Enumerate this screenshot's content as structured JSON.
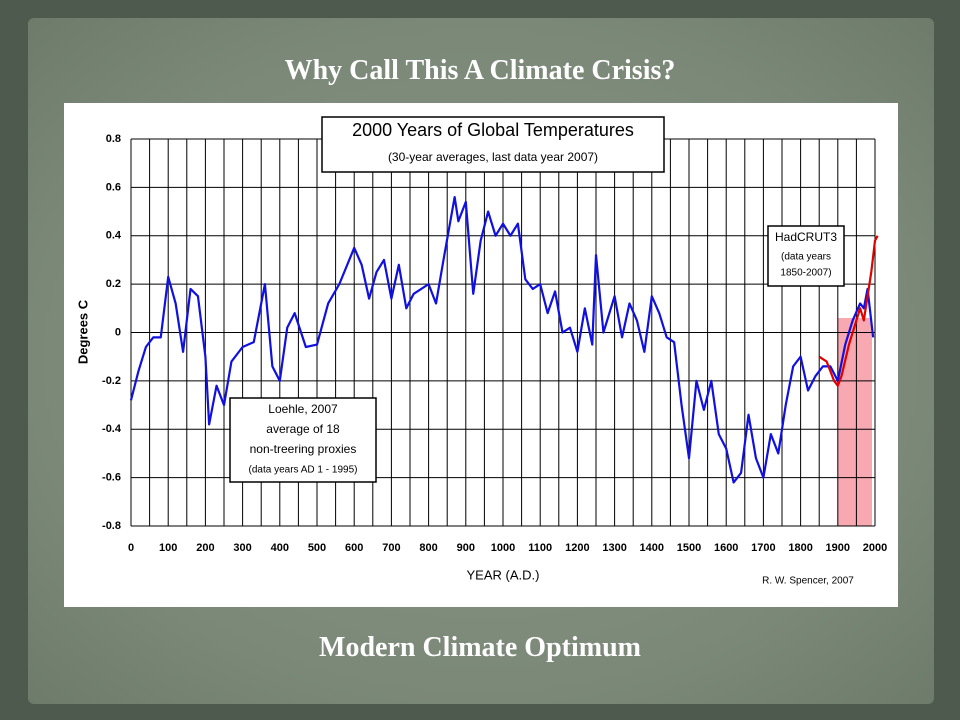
{
  "slide_title": "Why Call This A Climate Crisis?",
  "slide_footer": "Modern Climate Optimum",
  "chart_data": {
    "type": "line",
    "title": "2000 Years of Global Temperatures",
    "subtitle": "(30-year averages, last data year 2007)",
    "xlabel": "YEAR (A.D.)",
    "ylabel": "Degrees C",
    "credit": "R. W. Spencer, 2007",
    "annotations": {
      "loehle": [
        "average of 18",
        "non-treering proxies",
        "(data years AD 1 - 1995)"
      ],
      "hadcrut": [
        "(data years",
        "1850-2007)"
      ]
    },
    "xlim": [
      0,
      2000
    ],
    "ylim": [
      -0.8,
      0.8
    ],
    "xticks": [
      0,
      100,
      200,
      300,
      400,
      500,
      600,
      700,
      800,
      900,
      1000,
      1100,
      1200,
      1300,
      1400,
      1500,
      1600,
      1700,
      1800,
      1900,
      2000
    ],
    "x_minor_ticks": [
      50,
      150,
      250,
      350,
      450,
      550,
      650,
      750,
      850,
      950,
      1050,
      1150,
      1250,
      1350,
      1450,
      1550,
      1650,
      1750,
      1850,
      1950
    ],
    "yticks": [
      0.8,
      0.6,
      0.4,
      0.2,
      0,
      -0.2,
      -0.4,
      -0.6,
      -0.8
    ],
    "grid": true,
    "series": [
      {
        "name": "Loehle, 2007",
        "color": "#1010e0",
        "x": [
          0,
          20,
          40,
          60,
          80,
          100,
          120,
          140,
          160,
          180,
          200,
          210,
          230,
          250,
          270,
          300,
          330,
          360,
          380,
          400,
          420,
          440,
          470,
          500,
          530,
          560,
          600,
          620,
          640,
          660,
          680,
          700,
          720,
          740,
          760,
          800,
          820,
          840,
          870,
          880,
          900,
          920,
          940,
          960,
          980,
          1000,
          1020,
          1040,
          1060,
          1080,
          1100,
          1120,
          1140,
          1160,
          1180,
          1200,
          1220,
          1240,
          1250,
          1270,
          1300,
          1320,
          1340,
          1360,
          1380,
          1400,
          1420,
          1440,
          1460,
          1480,
          1500,
          1520,
          1540,
          1560,
          1580,
          1600,
          1620,
          1640,
          1660,
          1680,
          1700,
          1720,
          1740,
          1760,
          1780,
          1800,
          1820,
          1840,
          1860,
          1880,
          1900,
          1920,
          1940,
          1960,
          1970,
          1980,
          1995
        ],
        "values": [
          -0.28,
          -0.16,
          -0.06,
          -0.02,
          -0.02,
          0.23,
          0.12,
          -0.08,
          0.18,
          0.15,
          -0.1,
          -0.38,
          -0.22,
          -0.3,
          -0.12,
          -0.06,
          -0.04,
          0.2,
          -0.14,
          -0.2,
          0.02,
          0.08,
          -0.06,
          -0.05,
          0.12,
          0.2,
          0.35,
          0.28,
          0.14,
          0.25,
          0.3,
          0.14,
          0.28,
          0.1,
          0.16,
          0.2,
          0.12,
          0.3,
          0.56,
          0.46,
          0.54,
          0.16,
          0.38,
          0.5,
          0.4,
          0.45,
          0.4,
          0.45,
          0.22,
          0.18,
          0.2,
          0.08,
          0.17,
          0.0,
          0.02,
          -0.08,
          0.1,
          -0.05,
          0.32,
          0.0,
          0.15,
          -0.02,
          0.12,
          0.05,
          -0.08,
          0.15,
          0.08,
          -0.02,
          -0.04,
          -0.3,
          -0.52,
          -0.2,
          -0.32,
          -0.2,
          -0.42,
          -0.48,
          -0.62,
          -0.58,
          -0.34,
          -0.52,
          -0.6,
          -0.42,
          -0.5,
          -0.3,
          -0.14,
          -0.1,
          -0.24,
          -0.18,
          -0.14,
          -0.14,
          -0.2,
          -0.05,
          0.05,
          0.12,
          0.1,
          0.18,
          -0.02
        ]
      },
      {
        "name": "HadCRUT3",
        "color": "#e00000",
        "x": [
          1850,
          1870,
          1890,
          1900,
          1910,
          1930,
          1950,
          1960,
          1970,
          1980,
          1990,
          2000,
          2007
        ],
        "values": [
          -0.1,
          -0.12,
          -0.2,
          -0.22,
          -0.18,
          -0.05,
          0.05,
          0.1,
          0.05,
          0.15,
          0.25,
          0.38,
          0.4
        ]
      }
    ]
  }
}
